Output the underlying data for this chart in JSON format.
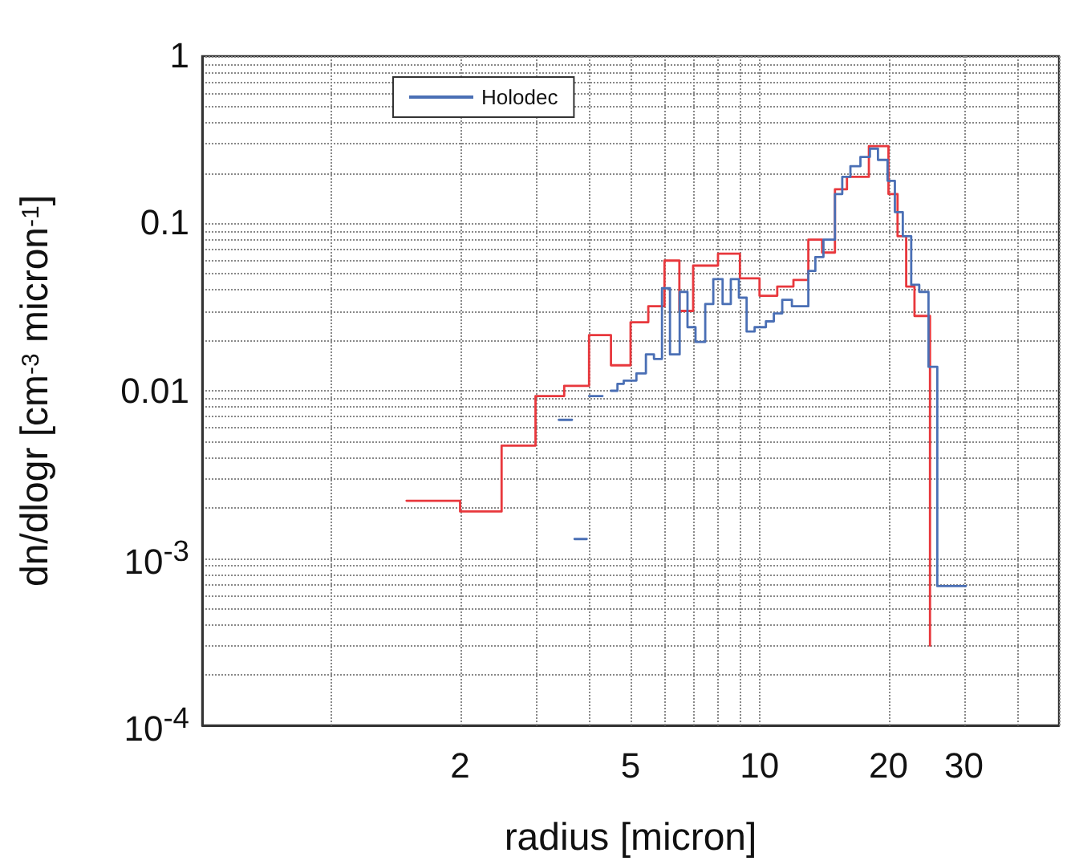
{
  "chart_data": {
    "type": "step",
    "xlabel": "radius [micron]",
    "ylabel": "dn/dlogr [cm$^{-3}$ micron$^{-1}$]",
    "log": "xy",
    "grid": true,
    "legend": "top left",
    "marker": "none",
    "line_style": "solid",
    "xlim": [
      0.5,
      50
    ],
    "xticks": [
      {
        "value": 1,
        "label": null
      },
      2,
      {
        "value": 3,
        "label": null
      },
      {
        "value": 4,
        "label": null
      },
      5,
      {
        "value": 6,
        "label": null
      },
      {
        "value": 7,
        "label": null
      },
      {
        "value": 8,
        "label": null
      },
      {
        "value": 9,
        "label": null
      },
      10,
      20,
      30,
      {
        "value": 40,
        "label": null
      },
      {
        "value": 50,
        "label": null
      }
    ],
    "ylim": [
      0.0001,
      1
    ],
    "yticks": [
      {
        "value": 0.0001,
        "label": "10$^{-4}$"
      },
      {
        "value": 0.0002,
        "label": null
      },
      {
        "value": 0.0003,
        "label": null
      },
      {
        "value": 0.0004,
        "label": null
      },
      {
        "value": 0.0005,
        "label": null
      },
      {
        "value": 0.0006,
        "label": null
      },
      {
        "value": 0.0007,
        "label": null
      },
      {
        "value": 0.0008,
        "label": null
      },
      {
        "value": 0.0009,
        "label": null
      },
      {
        "value": 0.001,
        "label": "10$^{-3}$"
      },
      {
        "value": 0.002,
        "label": null
      },
      {
        "value": 0.003,
        "label": null
      },
      {
        "value": 0.004,
        "label": null
      },
      {
        "value": 0.005,
        "label": null
      },
      {
        "value": 0.006,
        "label": null
      },
      {
        "value": 0.007,
        "label": null
      },
      {
        "value": 0.008,
        "label": null
      },
      {
        "value": 0.009,
        "label": null
      },
      0.01,
      {
        "value": 0.02,
        "label": null
      },
      {
        "value": 0.03,
        "label": null
      },
      {
        "value": 0.04,
        "label": null
      },
      {
        "value": 0.05,
        "label": null
      },
      {
        "value": 0.06,
        "label": null
      },
      {
        "value": 0.07,
        "label": null
      },
      {
        "value": 0.08,
        "label": null
      },
      {
        "value": 0.09,
        "label": null
      },
      0.1,
      {
        "value": 0.2,
        "label": null
      },
      {
        "value": 0.3,
        "label": null
      },
      {
        "value": 0.4,
        "label": null
      },
      {
        "value": 0.5,
        "label": null
      },
      {
        "value": 0.6,
        "label": null
      },
      {
        "value": 0.7,
        "label": null
      },
      {
        "value": 0.8,
        "label": null
      },
      {
        "value": 0.9,
        "label": null
      },
      1
    ],
    "series": [
      {
        "name": "Holodec",
        "color": "#4a6fb5",
        "x": [
          3.4,
          3.6,
          3.65,
          3.7,
          3.9,
          3.95,
          4.0,
          4.2,
          4.3,
          4.5,
          4.66,
          4.82,
          5.16,
          5.43,
          5.67,
          5.92,
          6.18,
          6.51,
          6.79,
          7.09,
          7.47,
          7.8,
          8.2,
          8.57,
          8.95,
          9.33,
          9.74,
          10.35,
          10.8,
          11.3,
          11.9,
          13.0,
          13.5,
          14.1,
          15.0,
          15.6,
          16.3,
          17.2,
          18.1,
          18.9,
          19.9,
          20.7,
          21.6,
          22.6,
          23.6,
          24.8,
          26.0,
          30.3
        ],
        "values": [
          0.0067,
          0.0067,
          null,
          0.0013,
          0.0013,
          null,
          0.0093,
          0.0093,
          null,
          0.01,
          0.011,
          0.0115,
          0.0127,
          0.0165,
          0.0155,
          0.041,
          0.0165,
          0.039,
          0.024,
          0.0196,
          0.033,
          0.0465,
          0.033,
          0.0465,
          0.036,
          0.0226,
          0.024,
          0.026,
          0.029,
          0.035,
          0.032,
          0.052,
          0.063,
          0.08,
          0.15,
          0.19,
          0.22,
          0.25,
          0.28,
          0.24,
          0.18,
          0.117,
          0.084,
          0.043,
          0.039,
          0.0139,
          0.00068,
          0.00068
        ]
      },
      {
        "color": "#e8383d",
        "x": [
          1.5,
          2.0,
          2.5,
          3.0,
          3.5,
          4.0,
          4.5,
          5.0,
          5.5,
          6.0,
          6.5,
          7.0,
          8.0,
          9.0,
          10.0,
          11.0,
          12.0,
          13.0,
          14.0,
          15.0,
          16.0,
          18.0,
          20.0,
          21.0,
          22.0,
          23.0,
          25.0
        ],
        "values": [
          0.0022,
          0.0019,
          0.0047,
          0.0093,
          0.0107,
          0.0215,
          0.0142,
          0.0257,
          0.032,
          0.06,
          0.03,
          0.056,
          0.066,
          0.047,
          0.037,
          0.042,
          0.046,
          0.08,
          0.067,
          0.16,
          0.19,
          0.29,
          0.15,
          0.084,
          0.042,
          0.028,
          0.0003
        ]
      }
    ]
  }
}
